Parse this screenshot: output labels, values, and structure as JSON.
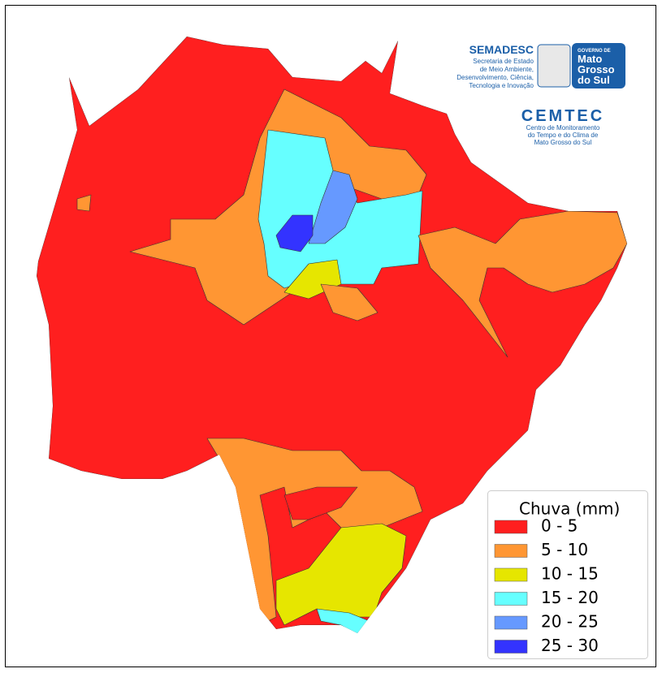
{
  "header": {
    "semadesc": {
      "title": "SEMADESC",
      "lines": [
        "Secretaria de Estado",
        "de Meio Ambiente,",
        "Desenvolvimento, Ciência,",
        "Tecnologia e Inovação"
      ]
    },
    "governo": {
      "small": "GOVERNO DE",
      "lines": [
        "Mato",
        "Grosso",
        "do Sul"
      ]
    },
    "cemtec": {
      "title": "CEMTEC",
      "lines": [
        "Centro de Monitoramento",
        "do Tempo e do Clima de",
        "Mato Grosso do Sul"
      ]
    }
  },
  "legend": {
    "title": "Chuva (mm)",
    "items": [
      {
        "label": "0 - 5",
        "color": "#ff1f1f"
      },
      {
        "label": "5 - 10",
        "color": "#ff9633"
      },
      {
        "label": "10 - 15",
        "color": "#e6e600"
      },
      {
        "label": "15 - 20",
        "color": "#66ffff"
      },
      {
        "label": "20 - 25",
        "color": "#6699ff"
      },
      {
        "label": "25 - 30",
        "color": "#3333ff"
      }
    ]
  }
}
